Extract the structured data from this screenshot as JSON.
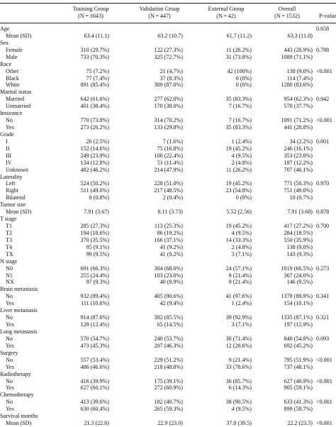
{
  "header": {
    "training": [
      "Training Group",
      "(N = 1043)"
    ],
    "validation": [
      "Validation Group",
      "(N = 447)"
    ],
    "external": [
      "External Group",
      "(N = 42)"
    ],
    "overall": [
      "Overall",
      "(N = 1532)"
    ],
    "pvalue": "P-value"
  },
  "rows": [
    {
      "label": "Age",
      "sub": false,
      "c1": "",
      "c2": "",
      "c3": "",
      "c4": "",
      "p": "0.658"
    },
    {
      "label": "Mean (SD)",
      "sub": true,
      "c1": "63.4 (11.1)",
      "c2": "63.2 (10.7)",
      "c3": "61.7 (11.2)",
      "c4": "63.3 (11.0)",
      "p": ""
    },
    {
      "label": "Sex",
      "sub": false,
      "c1": "",
      "c2": "",
      "c3": "",
      "c4": "",
      "p": ""
    },
    {
      "label": "Female",
      "sub": true,
      "c1": "310 (29.7%)",
      "c2": "122 (27.3%)",
      "c3": "11 (26.2%)",
      "c4": "443 (28.9%)",
      "p": "0.788"
    },
    {
      "label": "Male",
      "sub": true,
      "c1": "733 (70.3%)",
      "c2": "325 (72.7%)",
      "c3": "31 (73.8%)",
      "c4": "1089 (71.1%)",
      "p": ""
    },
    {
      "label": "Race",
      "sub": false,
      "c1": "",
      "c2": "",
      "c3": "",
      "c4": "",
      "p": ""
    },
    {
      "label": "Other",
      "sub": true,
      "c1": "75 (7.2%)",
      "c2": "21 (4.7%)",
      "c3": "42 (100%)",
      "c4": "138 (9.0%)",
      "p": "<0.001"
    },
    {
      "label": "Black",
      "sub": true,
      "c1": "77 (7.4%)",
      "c2": "37 (8.3%)",
      "c3": "0 (0%)",
      "c4": "114 (7.4%)",
      "p": ""
    },
    {
      "label": "White",
      "sub": true,
      "c1": "891 (85.4%)",
      "c2": "389 (87.0%)",
      "c3": "0 (0%)",
      "c4": "1280 (83.6%)",
      "p": ""
    },
    {
      "label": "Marital status",
      "sub": false,
      "c1": "",
      "c2": "",
      "c3": "",
      "c4": "",
      "p": ""
    },
    {
      "label": "Married",
      "sub": true,
      "c1": "642 (61.6%)",
      "c2": "277 (62.0%)",
      "c3": "35 (83.3%)",
      "c4": "954 (62.3%)",
      "p": "0.042"
    },
    {
      "label": "Unmarried",
      "sub": true,
      "c1": "401 (38.4%)",
      "c2": "170 (38.0%)",
      "c3": "7 (16.7%)",
      "c4": "578 (37.7%)",
      "p": ""
    },
    {
      "label": "Insurance",
      "sub": false,
      "c1": "",
      "c2": "",
      "c3": "",
      "c4": "",
      "p": ""
    },
    {
      "label": "No",
      "sub": true,
      "c1": "770 (73.8%)",
      "c2": "314 (70.2%)",
      "c3": "7 (16.7%)",
      "c4": "1091 (71.2%)",
      "p": "<0.001"
    },
    {
      "label": "Yes",
      "sub": true,
      "c1": "273 (26.2%)",
      "c2": "133 (29.8%)",
      "c3": "35 (83.3%)",
      "c4": "441 (28.8%)",
      "p": ""
    },
    {
      "label": "Grade",
      "sub": false,
      "c1": "",
      "c2": "",
      "c3": "",
      "c4": "",
      "p": ""
    },
    {
      "label": "I",
      "sub": true,
      "c1": "26 (2.5%)",
      "c2": "7 (1.6%)",
      "c3": "1 (2.4%)",
      "c4": "34 (2.2%)",
      "p": "0.001"
    },
    {
      "label": "II",
      "sub": true,
      "c1": "152 (14.6%)",
      "c2": "75 (16.8%)",
      "c3": "19 (45.2%)",
      "c4": "246 (16.1%)",
      "p": ""
    },
    {
      "label": "III",
      "sub": true,
      "c1": "249 (23.9%)",
      "c2": "100 (22.4%)",
      "c3": "4 (9.5%)",
      "c4": "353 (23.0%)",
      "p": ""
    },
    {
      "label": "IV",
      "sub": true,
      "c1": "134 (12.8%)",
      "c2": "51 (11.4%)",
      "c3": "2 (4.8%)",
      "c4": "187 (12.2%)",
      "p": ""
    },
    {
      "label": "Unknown",
      "sub": true,
      "c1": "482 (46.2%)",
      "c2": "214 (47.9%)",
      "c3": "11 (26.2%)",
      "c4": "707 (46.1%)",
      "p": ""
    },
    {
      "label": "Laterality",
      "sub": false,
      "c1": "",
      "c2": "",
      "c3": "",
      "c4": "",
      "p": ""
    },
    {
      "label": "Left",
      "sub": true,
      "c1": "524 (50.2%)",
      "c2": "228 (51.0%)",
      "c3": "19 (45.2%)",
      "c4": "771 (50.3%)",
      "p": "0.970"
    },
    {
      "label": "Right",
      "sub": true,
      "c1": "511 (49.0%)",
      "c2": "217 (48.5%)",
      "c3": "23 (54.8%)",
      "c4": "751 (49.0%)",
      "p": ""
    },
    {
      "label": "Bilateral",
      "sub": true,
      "c1": "8 (0.8%)",
      "c2": "2 (0.4%)",
      "c3": "0 (0%)",
      "c4": "10 (0.7%)",
      "p": ""
    },
    {
      "label": "Tumor size",
      "sub": false,
      "c1": "",
      "c2": "",
      "c3": "",
      "c4": "",
      "p": ""
    },
    {
      "label": "Mean (SD)",
      "sub": true,
      "c1": "7.91 (3.67)",
      "c2": "8.11 (3.73)",
      "c3": "5.52 (2.56)",
      "c4": "7.91 (3.68)",
      "p": "0.878"
    },
    {
      "label": "T stage",
      "sub": false,
      "c1": "",
      "c2": "",
      "c3": "",
      "c4": "",
      "p": ""
    },
    {
      "label": "T1",
      "sub": true,
      "c1": "285 (27.3%)",
      "c2": "113 (25.3%)",
      "c3": "19 (45.2%)",
      "c4": "417 (27.2%)",
      "p": "0.700"
    },
    {
      "label": "T2",
      "sub": true,
      "c1": "194 (18.6%)",
      "c2": "86 (19.2%)",
      "c3": "4 (9.5%)",
      "c4": "284 (18.5%)",
      "p": ""
    },
    {
      "label": "T3",
      "sub": true,
      "c1": "370 (35.5%)",
      "c2": "166 (37.1%)",
      "c3": "14 (33.3%)",
      "c4": "550 (35.9%)",
      "p": ""
    },
    {
      "label": "T4",
      "sub": true,
      "c1": "95 (9.1%)",
      "c2": "41 (9.2%)",
      "c3": "2 (4.8%)",
      "c4": "138 (9.0%)",
      "p": ""
    },
    {
      "label": "TX",
      "sub": true,
      "c1": "99 (9.5%)",
      "c2": "41 (9.2%)",
      "c3": "3 (7.1%)",
      "c4": "143 (9.3%)",
      "p": ""
    },
    {
      "label": "N stage",
      "sub": false,
      "c1": "",
      "c2": "",
      "c3": "",
      "c4": "",
      "p": ""
    },
    {
      "label": "N0",
      "sub": true,
      "c1": "691 (66.3%)",
      "c2": "304 (68.0%)",
      "c3": "24 (57.1%)",
      "c4": "1019 (66.5%)",
      "p": "0.273"
    },
    {
      "label": "N1",
      "sub": true,
      "c1": "255 (24.4%)",
      "c2": "103 (23.0%)",
      "c3": "9 (21.4%)",
      "c4": "367 (24.0%)",
      "p": ""
    },
    {
      "label": "NX",
      "sub": true,
      "c1": "97 (9.3%)",
      "c2": "40 (8.9%)",
      "c3": "9 (21.4%)",
      "c4": "146 (9.5%)",
      "p": ""
    },
    {
      "label": "Brain metastasis",
      "sub": false,
      "c1": "",
      "c2": "",
      "c3": "",
      "c4": "",
      "p": ""
    },
    {
      "label": "No",
      "sub": true,
      "c1": "932 (89.4%)",
      "c2": "405 (90.6%)",
      "c3": "41 (97.6%)",
      "c4": "1378 (89.9%)",
      "p": "0.341"
    },
    {
      "label": "Yes",
      "sub": true,
      "c1": "111 (10.6%)",
      "c2": "42 (9.4%)",
      "c3": "1 (2.4%)",
      "c4": "154 (10.1%)",
      "p": ""
    },
    {
      "label": "Liver metastasis",
      "sub": false,
      "c1": "",
      "c2": "",
      "c3": "",
      "c4": "",
      "p": ""
    },
    {
      "label": "No",
      "sub": true,
      "c1": "914 (87.6%)",
      "c2": "382 (85.5%)",
      "c3": "39 (92.9%)",
      "c4": "1335 (87.1%)",
      "p": "0.321"
    },
    {
      "label": "Yes",
      "sub": true,
      "c1": "129 (12.4%)",
      "c2": "65 (14.5%)",
      "c3": "3 (7.1%)",
      "c4": "197 (12.9%)",
      "p": ""
    },
    {
      "label": "Lung metastasis",
      "sub": false,
      "c1": "",
      "c2": "",
      "c3": "",
      "c4": "",
      "p": ""
    },
    {
      "label": "No",
      "sub": true,
      "c1": "570 (54.7%)",
      "c2": "240 (53.7%)",
      "c3": "30 (71.4%)",
      "c4": "840 (54.8%)",
      "p": "0.093"
    },
    {
      "label": "Yes",
      "sub": true,
      "c1": "473 (45.3%)",
      "c2": "207 (46.3%)",
      "c3": "12 (28.6%)",
      "c4": "692 (45.2%)",
      "p": ""
    },
    {
      "label": "Surgery",
      "sub": false,
      "c1": "",
      "c2": "",
      "c3": "",
      "c4": "",
      "p": ""
    },
    {
      "label": "No",
      "sub": true,
      "c1": "557 (53.4%)",
      "c2": "229 (51.2%)",
      "c3": "9 (21.4%)",
      "c4": "795 (51.9%)",
      "p": "<0.001"
    },
    {
      "label": "Yes",
      "sub": true,
      "c1": "486 (46.6%)",
      "c2": "218 (48.8%)",
      "c3": "33 (78.6%)",
      "c4": "737 (48.1%)",
      "p": ""
    },
    {
      "label": "Radiotherapy",
      "sub": false,
      "c1": "",
      "c2": "",
      "c3": "",
      "c4": "",
      "p": ""
    },
    {
      "label": "No",
      "sub": true,
      "c1": "416 (39.9%)",
      "c2": "175 (39.1%)",
      "c3": "36 (85.7%)",
      "c4": "627 (40.9%)",
      "p": "<0.001"
    },
    {
      "label": "Yes",
      "sub": true,
      "c1": "627 (60.1%)",
      "c2": "272 (60.9%)",
      "c3": "6 (14.3%)",
      "c4": "905 (59.1%)",
      "p": ""
    },
    {
      "label": "Chemotherapy",
      "sub": false,
      "c1": "",
      "c2": "",
      "c3": "",
      "c4": "",
      "p": ""
    },
    {
      "label": "No",
      "sub": true,
      "c1": "413 (39.6%)",
      "c2": "182 (40.7%)",
      "c3": "38 (90.5%)",
      "c4": "633 (41.3%)",
      "p": "<0.001"
    },
    {
      "label": "Yes",
      "sub": true,
      "c1": "630 (60.4%)",
      "c2": "265 (59.3%)",
      "c3": "4 (9.5%)",
      "c4": "899 (58.7%)",
      "p": ""
    },
    {
      "label": "Survival months",
      "sub": false,
      "c1": "",
      "c2": "",
      "c3": "",
      "c4": "",
      "p": ""
    },
    {
      "label": "Mean (SD)",
      "sub": true,
      "c1": "21.3 (22.6)",
      "c2": "22.9 (23.0)",
      "c3": "37.0 (39.5)",
      "c4": "22.2 (23.5)",
      "p": "<0.001"
    }
  ]
}
